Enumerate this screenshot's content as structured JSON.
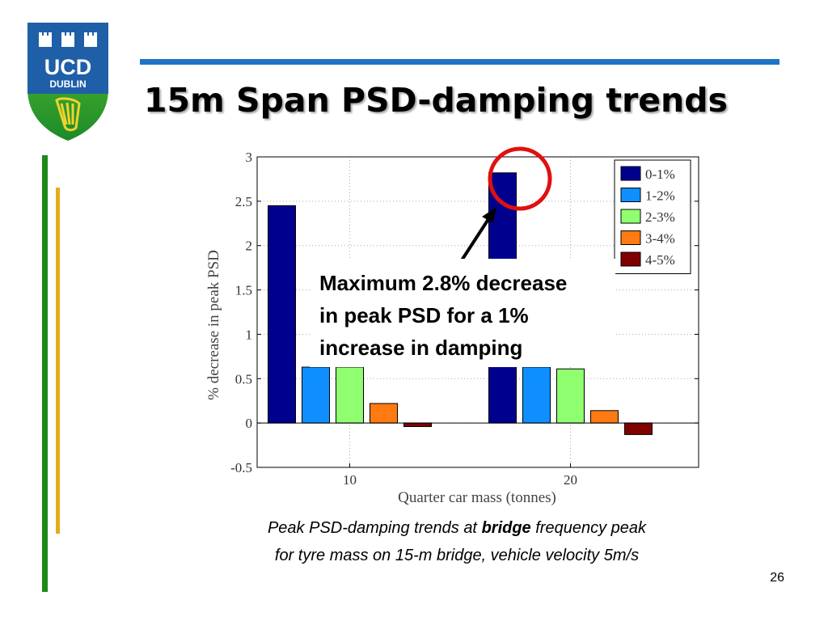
{
  "slide": {
    "title": "15m Span PSD-damping trends",
    "page_number": "26",
    "logo": {
      "line1": "UCD",
      "line2": "DUBLIN"
    },
    "annotation_lines": [
      "Maximum 2.8% decrease",
      "in peak PSD for a 1%",
      "increase in damping"
    ],
    "caption": {
      "part1": "Peak PSD-damping trends at ",
      "bold": "bridge",
      "part2": " frequency peak",
      "line2": "for tyre mass on 15-m bridge, vehicle velocity 5m/s"
    }
  },
  "colors": {
    "accent_blue": "#1f73c7",
    "green_bar": "#1a8a1a",
    "gold_bar": "#e3ad1a",
    "highlight_circle": "#e01010"
  },
  "chart_data": {
    "type": "bar",
    "categories": [
      "10",
      "20"
    ],
    "series": [
      {
        "name": "0-1%",
        "color": "#00008f",
        "values": [
          2.45,
          2.82
        ]
      },
      {
        "name": "1-2%",
        "color": "#0f8fff",
        "values": [
          0.63,
          0.63
        ]
      },
      {
        "name": "2-3%",
        "color": "#8fff70",
        "values": [
          0.63,
          0.61
        ]
      },
      {
        "name": "3-4%",
        "color": "#ff7a10",
        "values": [
          0.22,
          0.14
        ]
      },
      {
        "name": "4-5%",
        "color": "#800000",
        "values": [
          -0.04,
          -0.13
        ]
      }
    ],
    "xlabel": "Quarter car mass (tonnes)",
    "ylabel": "% decrease in peak PSD",
    "ylim": [
      -0.5,
      3
    ],
    "yticks": [
      "-0.5",
      "0",
      "0.5",
      "1",
      "1.5",
      "2",
      "2.5",
      "3"
    ],
    "grid": true,
    "legend_position": "top-right"
  }
}
